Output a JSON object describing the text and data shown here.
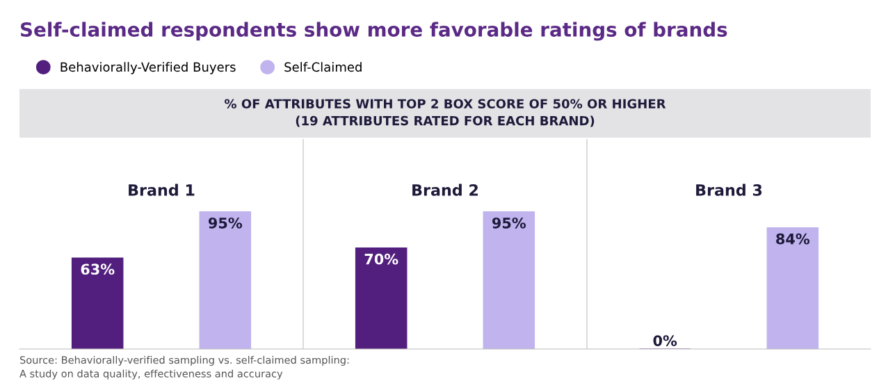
{
  "chart_data": {
    "type": "bar",
    "title": "Self-claimed respondents show more favorable ratings of brands",
    "subtitle": "% OF ATTRIBUTES WITH TOP 2 BOX SCORE OF 50% OR HIGHER\n(19 ATTRIBUTES RATED FOR EACH BRAND)",
    "categories": [
      "Brand 1",
      "Brand 2",
      "Brand 3"
    ],
    "series": [
      {
        "name": "Behaviorally-Verified Buyers",
        "color": "#521f7e",
        "values": [
          63,
          70,
          0
        ],
        "value_labels": [
          "63%",
          "70%",
          "0%"
        ]
      },
      {
        "name": "Self-Claimed",
        "color": "#c0b3ee",
        "values": [
          95,
          95,
          84
        ],
        "value_labels": [
          "95%",
          "95%",
          "84%"
        ]
      }
    ],
    "tick_labels": "x",
    "legend": "top left",
    "grid": false,
    "annotations": [
      "Source: Behaviorally-verified sampling vs. self-claimed sampling:\nA study on data quality, effectiveness and accuracy"
    ]
  }
}
